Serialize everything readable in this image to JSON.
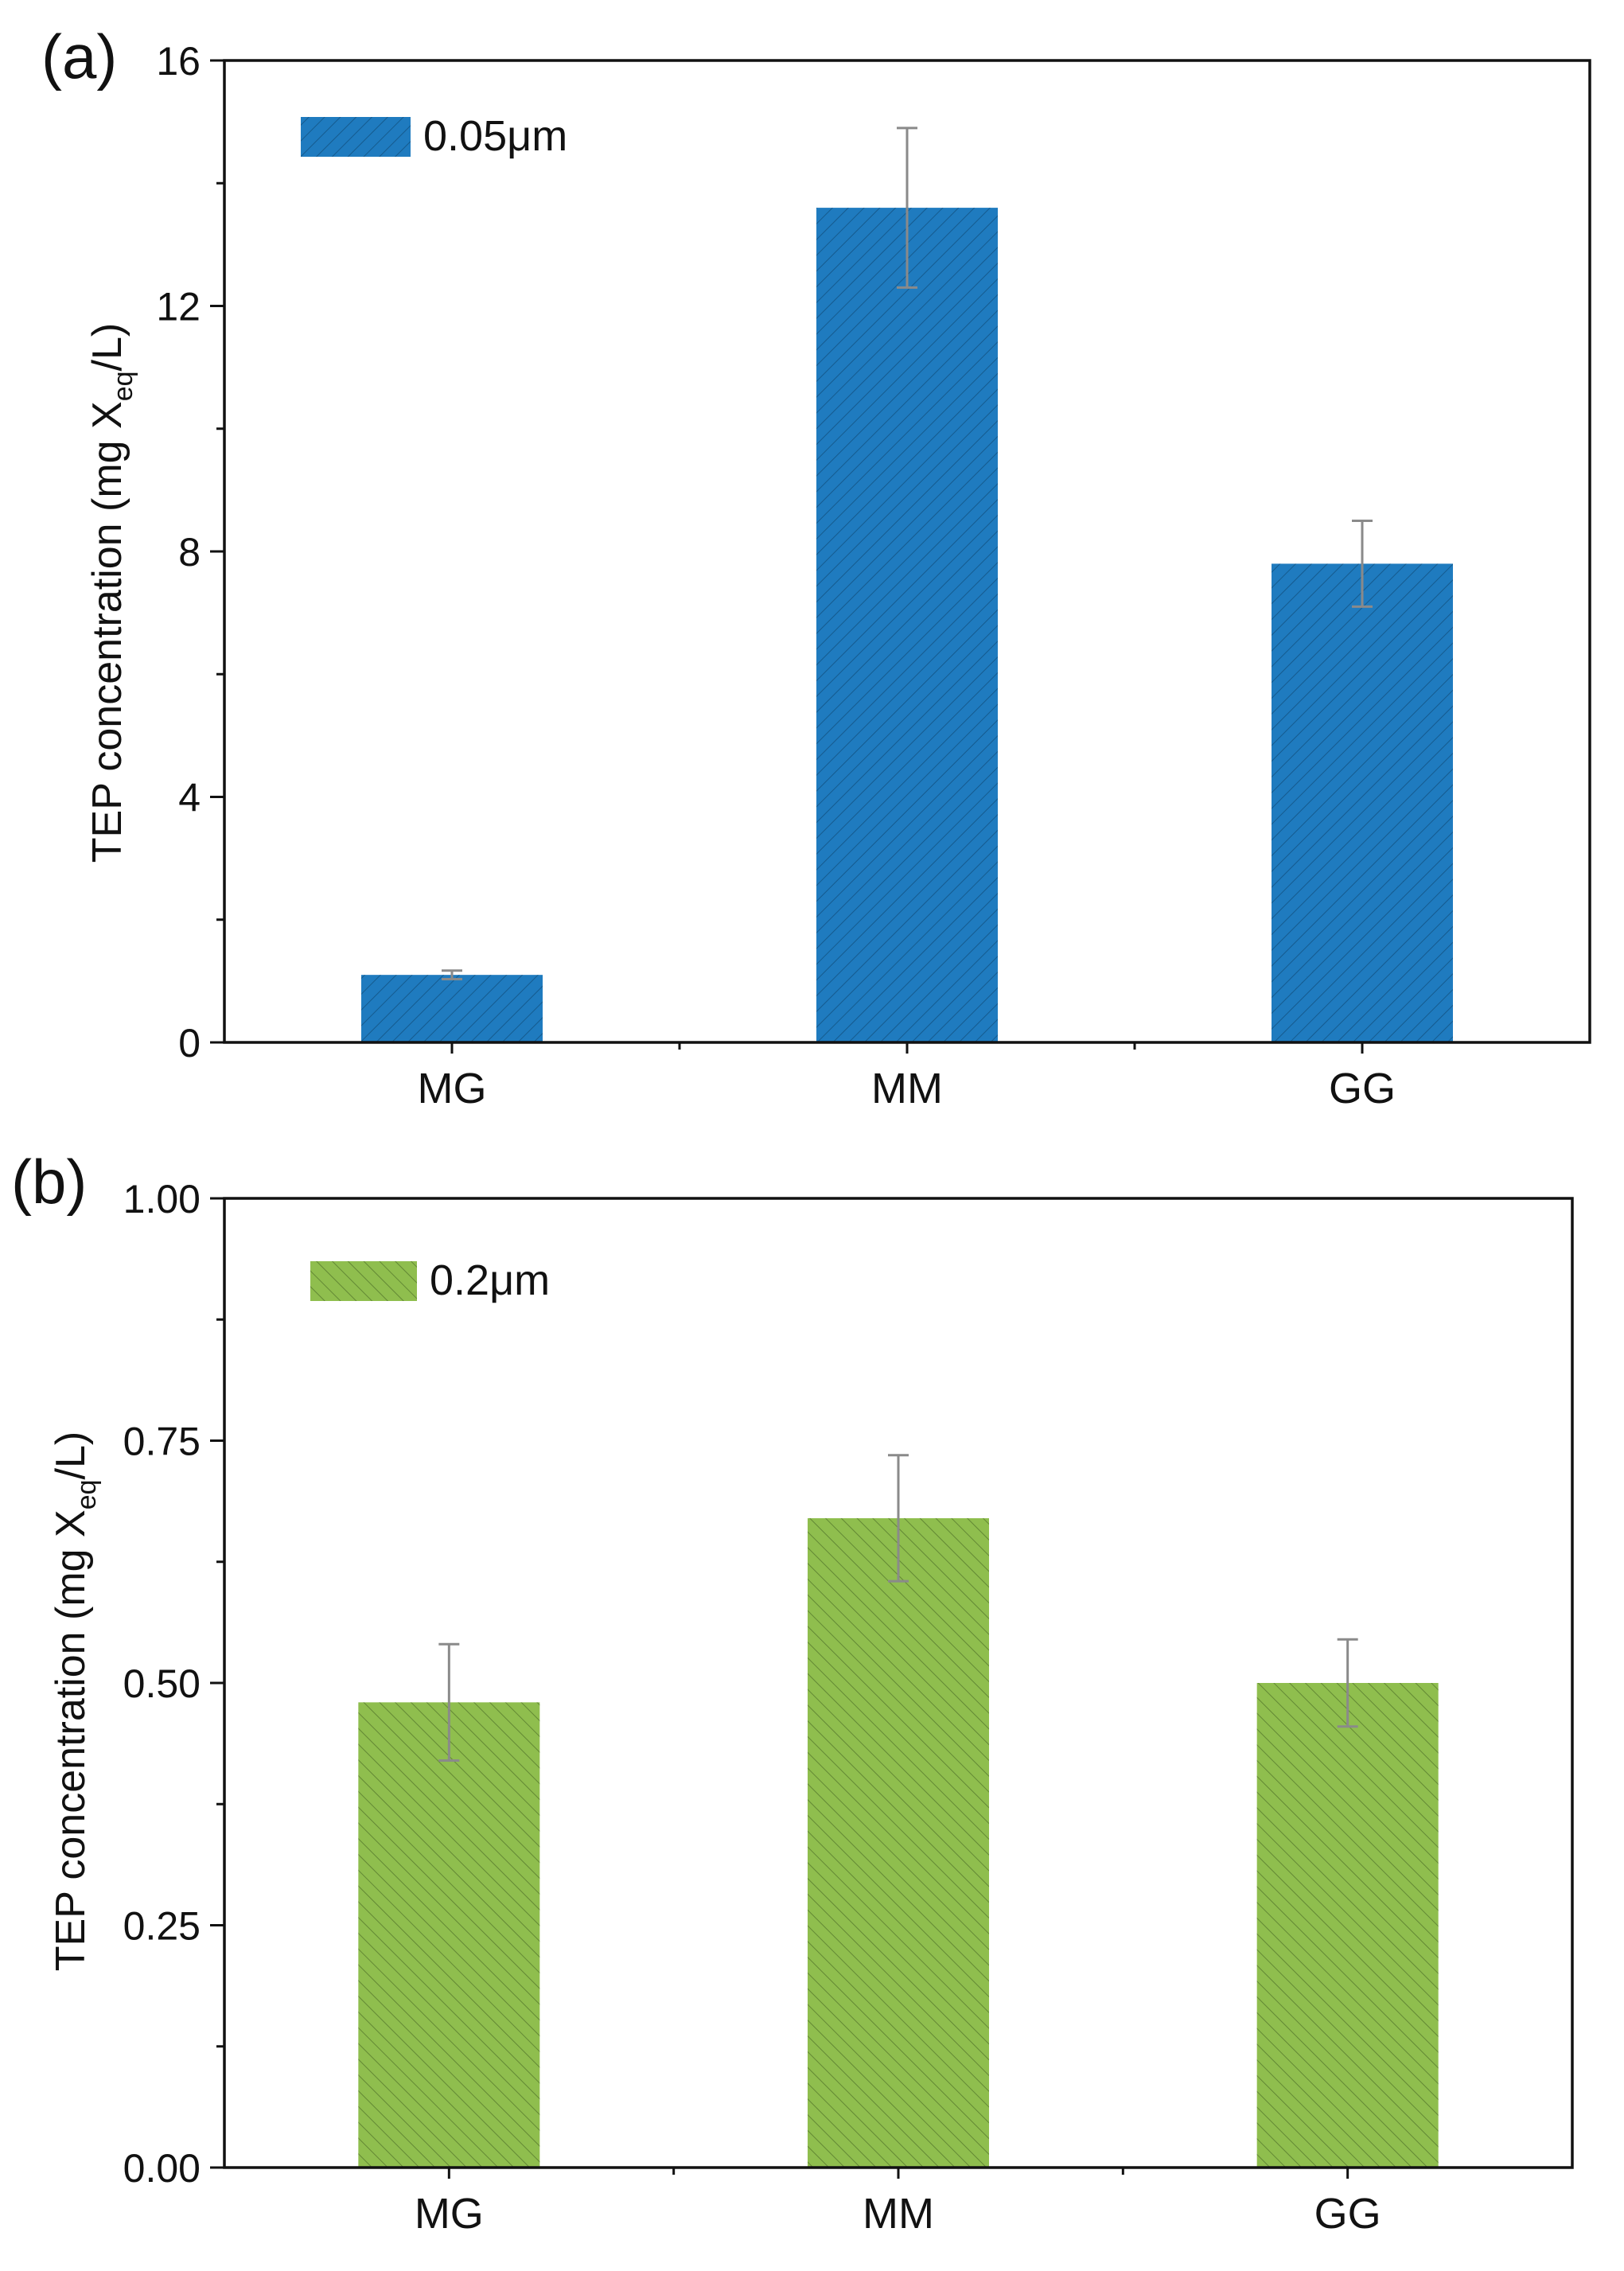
{
  "chart_data": [
    {
      "panel_label": "(a)",
      "type": "bar",
      "categories": [
        "MG",
        "MM",
        "GG"
      ],
      "series": [
        {
          "name": "0.05μm",
          "color": "#1f7bbf",
          "hatch": "forward-diagonal",
          "values": [
            1.1,
            13.6,
            7.8
          ],
          "errors": [
            0.07,
            1.3,
            0.7
          ]
        }
      ],
      "ylabel_main": "TEP concentration (mg X",
      "ylabel_sub": "eq",
      "ylabel_end": "/L)",
      "ylim": [
        0,
        16
      ],
      "yticks": [
        0,
        4,
        8,
        12,
        16
      ],
      "ytick_labels": [
        "0",
        "4",
        "8",
        "12",
        "16"
      ],
      "legend": {
        "position": "top-left",
        "label": "0.05μm"
      }
    },
    {
      "panel_label": "(b)",
      "type": "bar",
      "categories": [
        "MG",
        "MM",
        "GG"
      ],
      "series": [
        {
          "name": "0.2μm",
          "color": "#8fbe4e",
          "hatch": "back-diagonal",
          "values": [
            0.48,
            0.67,
            0.5
          ],
          "errors": [
            0.06,
            0.065,
            0.045
          ]
        }
      ],
      "ylabel_main": "TEP concentration (mg X",
      "ylabel_sub": "eq",
      "ylabel_end": "/L)",
      "ylim": [
        0,
        1
      ],
      "yticks": [
        0,
        0.25,
        0.5,
        0.75,
        1
      ],
      "ytick_labels": [
        "0.00",
        "0.25",
        "0.50",
        "0.75",
        "1.00"
      ],
      "legend": {
        "position": "top-left",
        "label": "0.2μm"
      }
    }
  ]
}
